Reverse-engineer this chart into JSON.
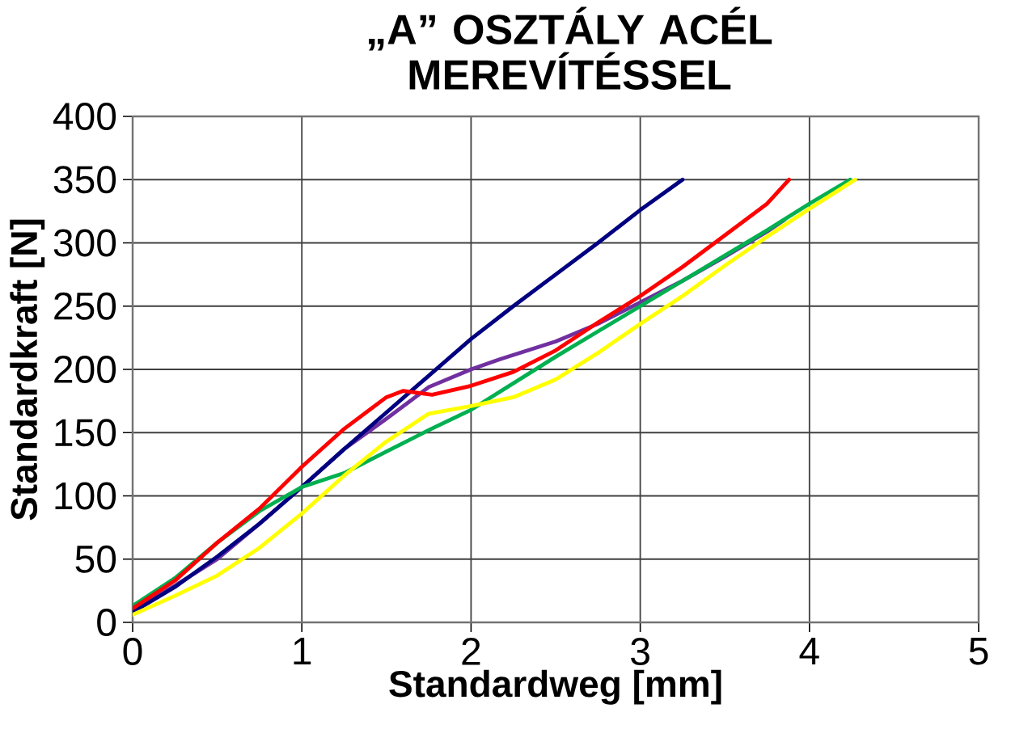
{
  "chart_data": {
    "type": "line",
    "title": "„A” OSZTÁLY ACÉL MEREVÍTÉSSEL",
    "xlabel": "Standardweg [mm]",
    "ylabel": "Standardkraft [N]",
    "xlim": [
      0,
      5
    ],
    "ylim": [
      0,
      400
    ],
    "xticks": [
      0,
      1,
      2,
      3,
      4,
      5
    ],
    "yticks": [
      0,
      50,
      100,
      150,
      200,
      250,
      300,
      350,
      400
    ],
    "grid": true,
    "series": [
      {
        "color": "#7030a0",
        "x": [
          0,
          0.25,
          0.5,
          0.75,
          1,
          1.25,
          1.5,
          1.75,
          2,
          2.17,
          2.5,
          2.75,
          3,
          3.25,
          3.5,
          3.75,
          3.85
        ],
        "values": [
          9,
          29,
          50,
          78,
          107,
          137,
          161,
          186,
          200,
          208,
          222,
          236,
          253,
          270,
          289,
          309,
          318
        ]
      },
      {
        "color": "#000080",
        "x": [
          0,
          0.25,
          0.5,
          0.75,
          1,
          1.25,
          1.5,
          1.75,
          2,
          2.25,
          2.5,
          2.75,
          3,
          3.25
        ],
        "values": [
          8,
          28,
          52,
          78,
          107,
          137,
          166,
          195,
          224,
          250,
          275,
          300,
          326,
          350
        ]
      },
      {
        "color": "#00b050",
        "x": [
          0,
          0.25,
          0.5,
          0.75,
          1,
          1.25,
          1.5,
          1.75,
          2,
          2.25,
          2.5,
          2.75,
          3,
          3.25,
          3.5,
          3.75,
          4,
          4.24
        ],
        "values": [
          13,
          35,
          63,
          88,
          107,
          118,
          135,
          152,
          168,
          189,
          210,
          230,
          250,
          270,
          290,
          310,
          331,
          350
        ]
      },
      {
        "color": "#ffff00",
        "x": [
          0,
          0.25,
          0.5,
          0.75,
          1,
          1.25,
          1.5,
          1.75,
          2,
          2.25,
          2.5,
          2.75,
          3,
          3.25,
          3.5,
          3.75,
          4,
          4.27
        ],
        "values": [
          6,
          21,
          37,
          59,
          86,
          116,
          143,
          165,
          171,
          178,
          192,
          213,
          236,
          258,
          282,
          305,
          327,
          350
        ]
      },
      {
        "color": "#ff0000",
        "x": [
          0,
          0.25,
          0.5,
          0.75,
          1,
          1.25,
          1.5,
          1.6,
          1.77,
          2,
          2.25,
          2.5,
          2.75,
          3,
          3.25,
          3.5,
          3.75,
          3.88
        ],
        "values": [
          11,
          33,
          63,
          90,
          123,
          153,
          178,
          183,
          180,
          187,
          198,
          215,
          237,
          258,
          281,
          306,
          331,
          350
        ]
      }
    ]
  }
}
